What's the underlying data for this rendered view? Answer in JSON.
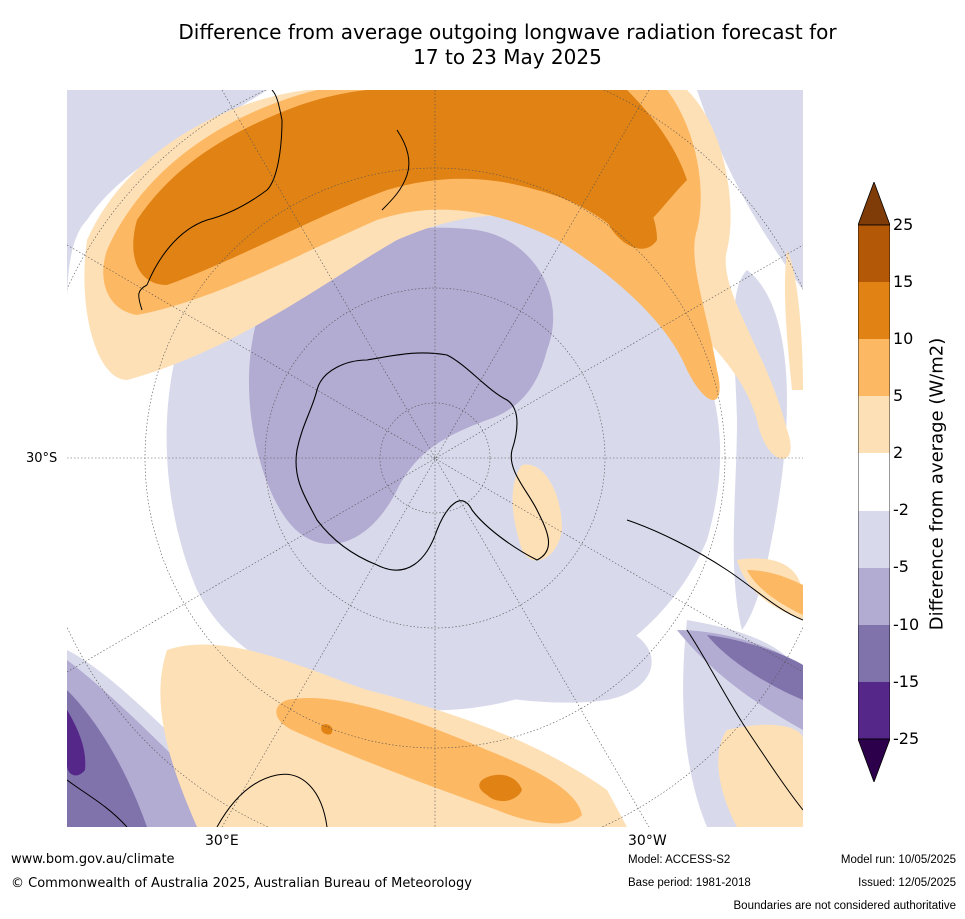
{
  "title": {
    "line1": "Difference from average outgoing longwave radiation forecast for",
    "line2": "17 to 23 May 2025"
  },
  "map": {
    "projection": "polar stereographic (south)",
    "lat_label": "30°S",
    "lon_labels": [
      "30°E",
      "30°W"
    ]
  },
  "colorbar": {
    "title": "Difference from average (W/m2)",
    "ticks": [
      "25",
      "15",
      "10",
      "5",
      "2",
      "-2",
      "-5",
      "-10",
      "-15",
      "-25"
    ],
    "colors": {
      "above_25": "#7f3b08",
      "15_25": "#b35806",
      "10_15": "#e08214",
      "5_10": "#fdb863",
      "2_5": "#fee0b6",
      "-2_2": "#ffffff",
      "-5_-2": "#d8daeb",
      "-10_-5": "#b2abd2",
      "-15_-10": "#8073ac",
      "-25_-15": "#542788",
      "below_-25": "#2d004b"
    }
  },
  "footer": {
    "url": "www.bom.gov.au/climate",
    "copyright": "© Commonwealth of Australia 2025, Australian Bureau of Meteorology",
    "model": "Model: ACCESS-S2",
    "base_period": "Base period: 1981-2018",
    "model_run": "Model run: 10/05/2025",
    "issued": "Issued: 12/05/2025",
    "disclaimer": "Boundaries are not considered authoritative"
  }
}
